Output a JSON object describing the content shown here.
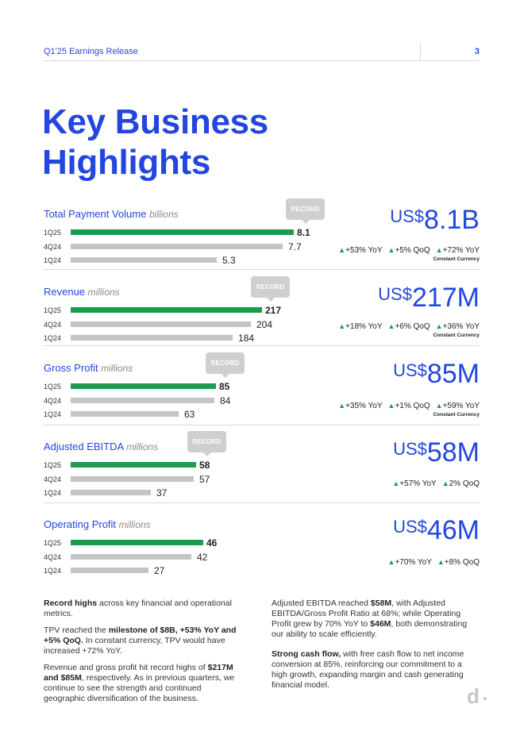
{
  "header": {
    "title": "Q1'25 Earnings Release",
    "page": "3"
  },
  "main_title": {
    "line1": "Key Business",
    "line2": "Highlights"
  },
  "record_label": "RECORD",
  "sections": [
    {
      "title": "Total Payment Volume",
      "unit": "billions",
      "rows": [
        {
          "label": "1Q25",
          "value": 8.1,
          "display": "8.1"
        },
        {
          "label": "4Q24",
          "value": 7.7,
          "display": "7.7"
        },
        {
          "label": "1Q24",
          "value": 5.3,
          "display": "5.3"
        }
      ],
      "currency": "US$",
      "amount": "8.1B",
      "growth": [
        "+53% YoY",
        "+5% QoQ",
        "+72% YoY"
      ],
      "note": "Constant Currency"
    },
    {
      "title": "Revenue",
      "unit": "millions",
      "rows": [
        {
          "label": "1Q25",
          "value": 217,
          "display": "217"
        },
        {
          "label": "4Q24",
          "value": 204,
          "display": "204"
        },
        {
          "label": "1Q24",
          "value": 184,
          "display": "184"
        }
      ],
      "currency": "US$",
      "amount": "217M",
      "growth": [
        "+18% YoY",
        "+6% QoQ",
        "+36% YoY"
      ],
      "note": "Constant Currency"
    },
    {
      "title": "Gross Profit",
      "unit": "millions",
      "rows": [
        {
          "label": "1Q25",
          "value": 85,
          "display": "85"
        },
        {
          "label": "4Q24",
          "value": 84,
          "display": "84"
        },
        {
          "label": "1Q24",
          "value": 63,
          "display": "63"
        }
      ],
      "currency": "US$",
      "amount": "85M",
      "growth": [
        "+35% YoY",
        "+1% QoQ",
        "+59% YoY"
      ],
      "note": "Constant Currency"
    },
    {
      "title": "Adjusted EBITDA",
      "unit": "millions",
      "rows": [
        {
          "label": "1Q25",
          "value": 58,
          "display": "58"
        },
        {
          "label": "4Q24",
          "value": 57,
          "display": "57"
        },
        {
          "label": "1Q24",
          "value": 37,
          "display": "37"
        }
      ],
      "currency": "US$",
      "amount": "58M",
      "growth": [
        "+57% YoY",
        "2% QoQ"
      ]
    },
    {
      "title": "Operating Profit",
      "unit": "millions",
      "rows": [
        {
          "label": "1Q25",
          "value": 46,
          "display": "46"
        },
        {
          "label": "4Q24",
          "value": 42,
          "display": "42"
        },
        {
          "label": "1Q24",
          "value": 27,
          "display": "27"
        }
      ],
      "currency": "US$",
      "amount": "46M",
      "growth": [
        "+70% YoY",
        "+8% QoQ"
      ]
    }
  ],
  "text": {
    "p1_b": "Record highs",
    "p1": " across key financial and operational metrics.",
    "p2_a": "TPV reached the ",
    "p2_b": "milestone of $8B, +53% YoY and +5% QoQ.",
    "p2_c": " In constant currency, TPV would have increased +72% YoY.",
    "p3_a": "Revenue and gross profit hit record highs of ",
    "p3_b": "$217M and $85M",
    "p3_c": ", respectively. As in previous quarters, we continue to see the strength and continued geographic diversification of the business.",
    "p4_a": "Adjusted EBITDA reached ",
    "p4_b": "$58M",
    "p4_c": ", with Adjusted EBITDA/Gross Profit Ratio at 68%; while Operating Profit grew by 70% YoY to ",
    "p4_d": "$46M",
    "p4_e": ", both demonstrating our ability to scale efficiently.",
    "p5_b": "Strong cash flow,",
    "p5": " with free cash flow to net income conversion at 85%, reinforcing our commitment to a high growth, expanding margin and cash generating financial model."
  },
  "logo": "d"
}
